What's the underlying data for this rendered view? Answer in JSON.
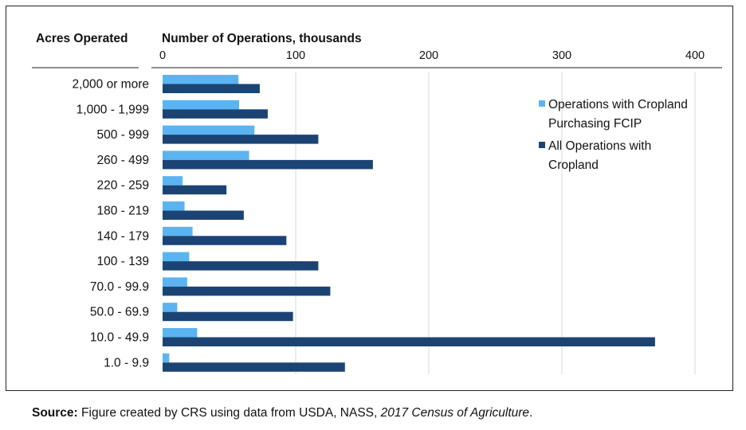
{
  "chart_data": {
    "type": "bar",
    "orientation": "horizontal",
    "category_axis_label": "Acres Operated",
    "value_axis_label": "Number of Operations, thousands",
    "categories": [
      "2,000 or more",
      "1,000 - 1,999",
      "500 - 999",
      "260 - 499",
      "220 - 259",
      "180 - 219",
      "140 - 179",
      "100 - 139",
      "70.0 - 99.9",
      "50.0 - 69.9",
      "10.0 - 49.9",
      "1.0 - 9.9"
    ],
    "series": [
      {
        "name": "Operations with Cropland Purchasing FCIP",
        "color": "#5bb4f0",
        "values": [
          57,
          57.5,
          69,
          65,
          15,
          16.5,
          22.5,
          20,
          18.5,
          11,
          26,
          5
        ]
      },
      {
        "name": "All Operations with Cropland",
        "color": "#1b4474",
        "values": [
          73,
          79,
          117,
          158,
          48,
          61,
          93,
          117,
          126,
          98,
          370,
          137
        ]
      }
    ],
    "xlim": [
      0,
      420
    ],
    "x_ticks": [
      "0",
      "100",
      "200",
      "300",
      "400"
    ],
    "x_tick_values": [
      0,
      100,
      200,
      300,
      400
    ],
    "x_axis_position": "top",
    "grid": "vertical",
    "legend_position": "right"
  },
  "source": {
    "label": "Source:",
    "text": "Figure created by CRS using data from USDA, NASS,",
    "citation": "2017 Census of Agriculture",
    "end": "."
  }
}
